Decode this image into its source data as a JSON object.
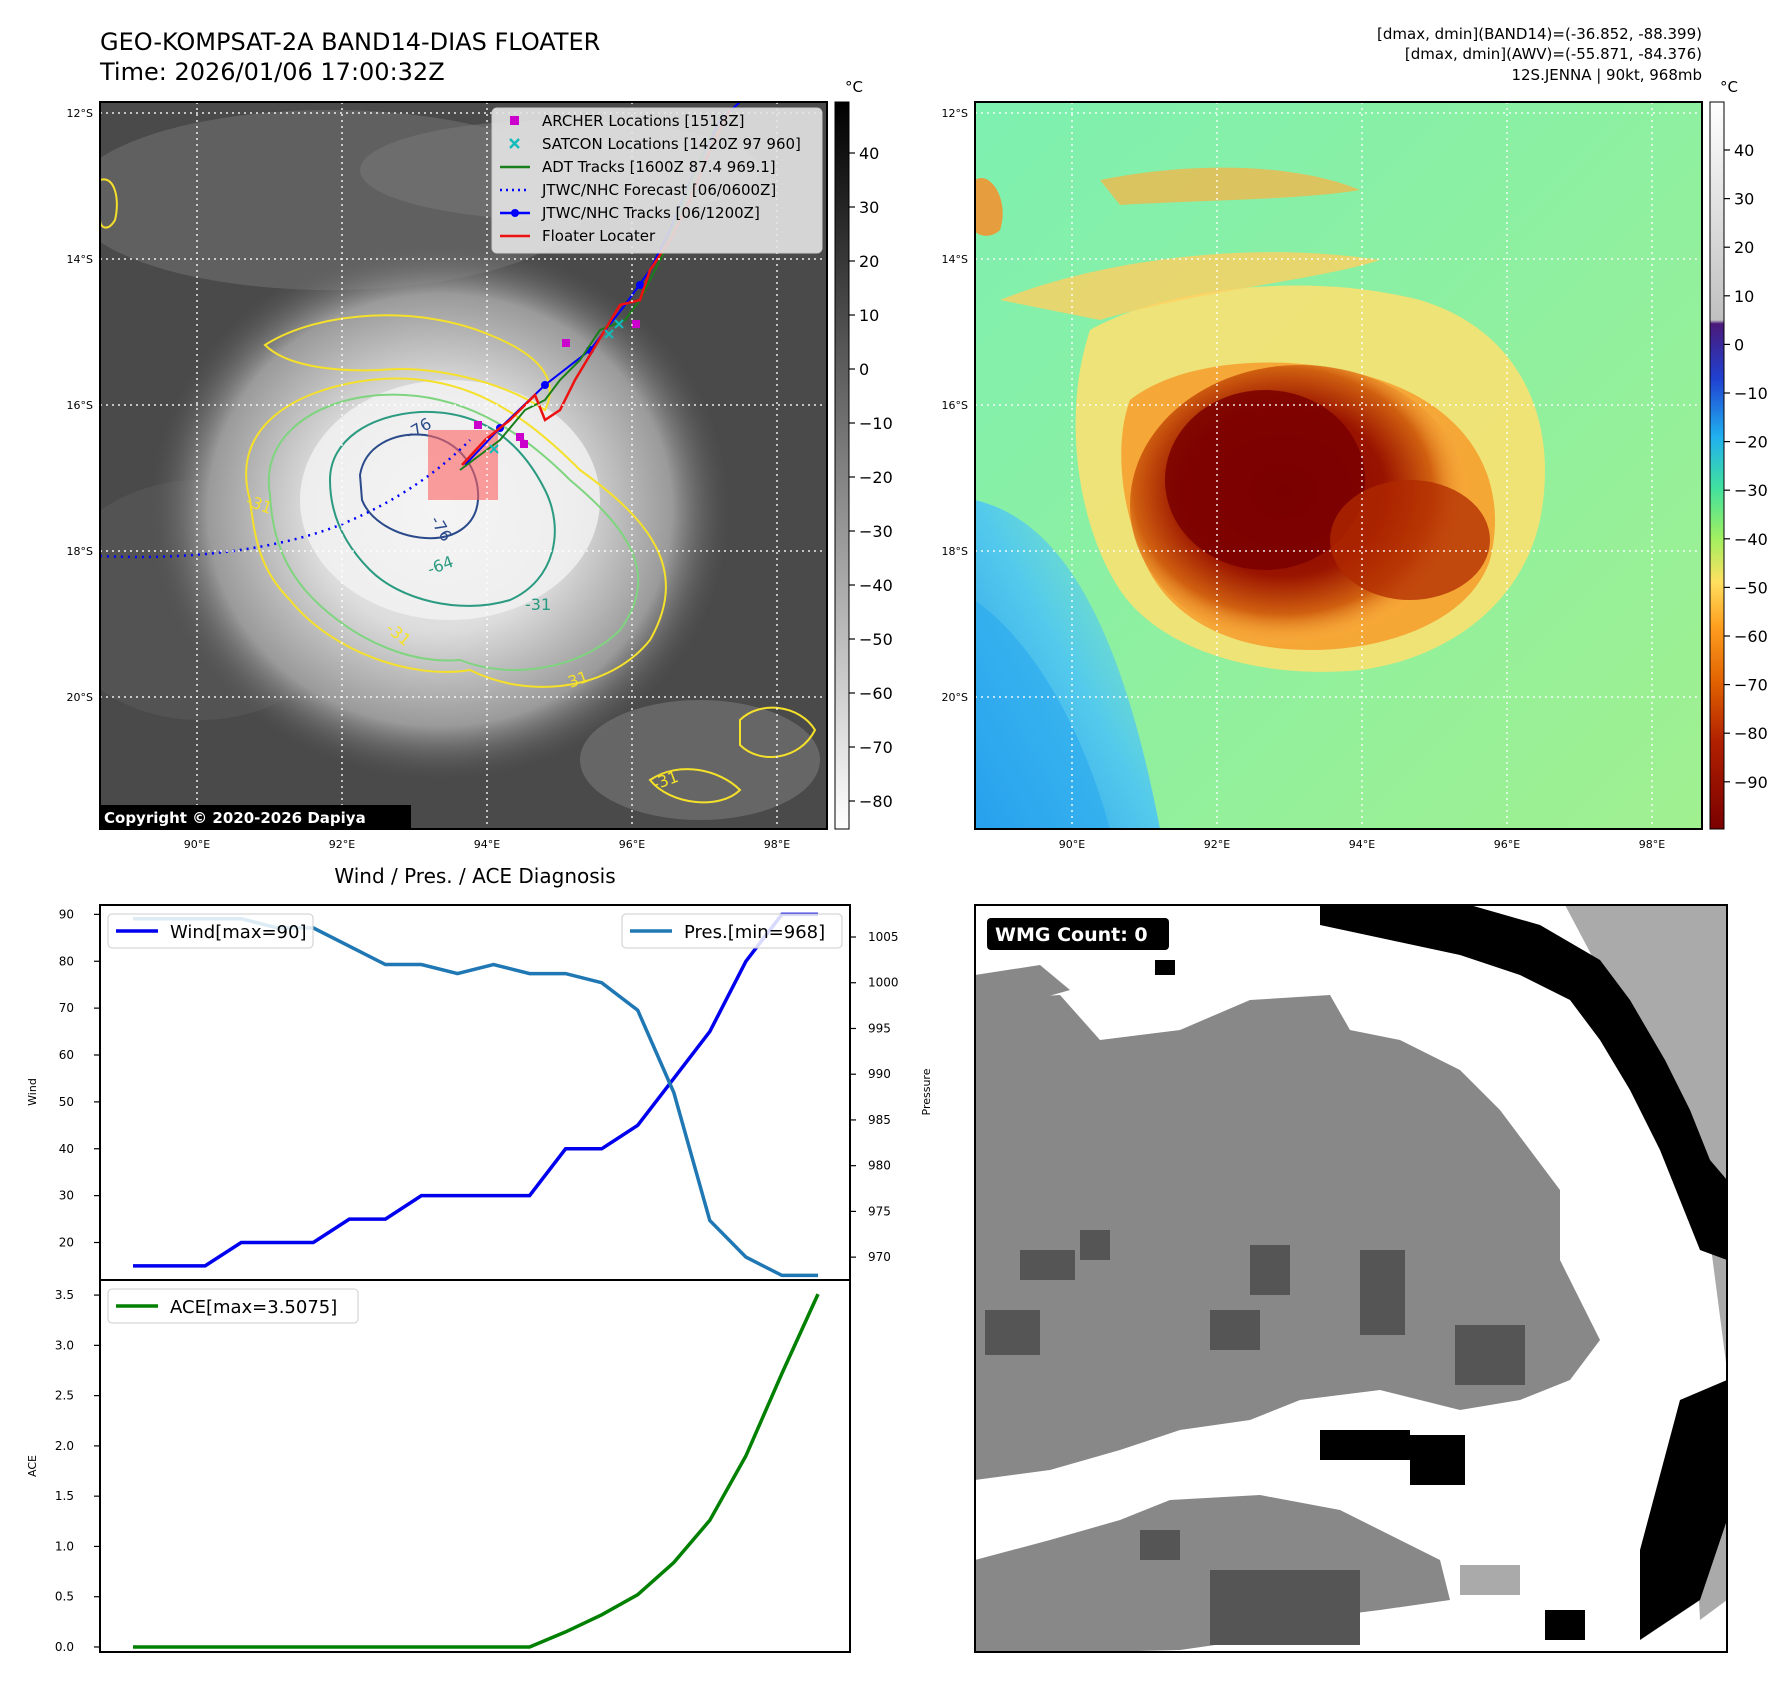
{
  "header": {
    "title_line1": "GEO-KOMPSAT-2A BAND14-DIAS FLOATER",
    "title_line2": "Time: 2026/01/06 17:00:32Z",
    "info_line1": "[dmax, dmin](BAND14)=(-36.852, -88.399)",
    "info_line2": "[dmax, dmin](AWV)=(-55.871, -84.376)",
    "info_line3": "12S.JENNA | 90kt, 968mb"
  },
  "map_panels": {
    "lat_labels": [
      "12°S",
      "14°S",
      "16°S",
      "18°S",
      "20°S"
    ],
    "lon_labels": [
      "90°E",
      "92°E",
      "94°E",
      "96°E",
      "98°E"
    ],
    "copyright": "Copyright © 2020-2026 Dapiya",
    "contour_labels": [
      "-76",
      "-76",
      "-64",
      "-31",
      "-31",
      "-31",
      "-31",
      "-31"
    ],
    "colorbar_left": {
      "unit": "°C",
      "ticks": [
        "40",
        "30",
        "20",
        "10",
        "0",
        "−10",
        "−20",
        "−30",
        "−40",
        "−50",
        "−60",
        "−70",
        "−80"
      ]
    },
    "colorbar_right": {
      "unit": "°C",
      "ticks": [
        "40",
        "30",
        "20",
        "10",
        "0",
        "−10",
        "−20",
        "−30",
        "−40",
        "−50",
        "−60",
        "−70",
        "−80",
        "−90"
      ]
    }
  },
  "legend": {
    "archer": "ARCHER Locations [1518Z]",
    "satcon": "SATCON Locations [1420Z 97 960]",
    "adt": "ADT Tracks [1600Z 87.4 969.1]",
    "forecast": "JTWC/NHC Forecast [06/0600Z]",
    "tracks": "JTWC/NHC Tracks [06/1200Z]",
    "floater": "Floater Locater"
  },
  "wmg": {
    "label": "WMG Count: 0"
  },
  "colors": {
    "wind": "#0000ee",
    "pressure": "#1f77b4",
    "ace": "#008000",
    "archer": "#cc00cc",
    "satcon": "#11bbbb",
    "adt": "#1a7f1a",
    "track": "#0000ff",
    "floater": "#ee1111"
  },
  "chart_data": [
    {
      "type": "line",
      "title": "Wind / Pres. / ACE Diagnosis",
      "x": [
        0,
        1,
        2,
        3,
        4,
        5,
        6,
        7,
        8,
        9,
        10,
        11,
        12,
        13,
        14,
        15,
        16,
        17,
        18,
        19
      ],
      "series": [
        {
          "name": "Wind[max=90]",
          "axis": "left",
          "values": [
            15,
            15,
            15,
            20,
            20,
            20,
            25,
            25,
            30,
            30,
            30,
            30,
            40,
            40,
            45,
            55,
            65,
            80,
            90,
            90
          ]
        },
        {
          "name": "Pres.[min=968]",
          "axis": "right",
          "values": [
            1007,
            1007,
            1007,
            1007,
            1006,
            1006,
            1004,
            1002,
            1002,
            1001,
            1002,
            1001,
            1001,
            1000,
            997,
            988,
            974,
            970,
            968,
            968
          ]
        }
      ],
      "ylabel": "Wind",
      "y2label": "Pressure",
      "ylim": [
        12,
        92
      ],
      "y2lim": [
        967.5,
        1008.5
      ],
      "yticks": [
        "20",
        "30",
        "40",
        "50",
        "60",
        "70",
        "80",
        "90"
      ],
      "y2ticks": [
        "970",
        "975",
        "980",
        "985",
        "990",
        "995",
        "1000",
        "1005"
      ]
    },
    {
      "type": "line",
      "x": [
        0,
        1,
        2,
        3,
        4,
        5,
        6,
        7,
        8,
        9,
        10,
        11,
        12,
        13,
        14,
        15,
        16,
        17,
        18,
        19
      ],
      "series": [
        {
          "name": "ACE[max=3.5075]",
          "values": [
            0,
            0,
            0,
            0,
            0,
            0,
            0,
            0,
            0,
            0,
            0,
            0,
            0.15,
            0.32,
            0.52,
            0.84,
            1.26,
            1.9,
            2.72,
            3.51
          ]
        }
      ],
      "ylabel": "ACE",
      "ylim": [
        -0.05,
        3.65
      ],
      "yticks": [
        "0.0",
        "0.5",
        "1.0",
        "1.5",
        "2.0",
        "2.5",
        "3.0",
        "3.5"
      ]
    }
  ]
}
